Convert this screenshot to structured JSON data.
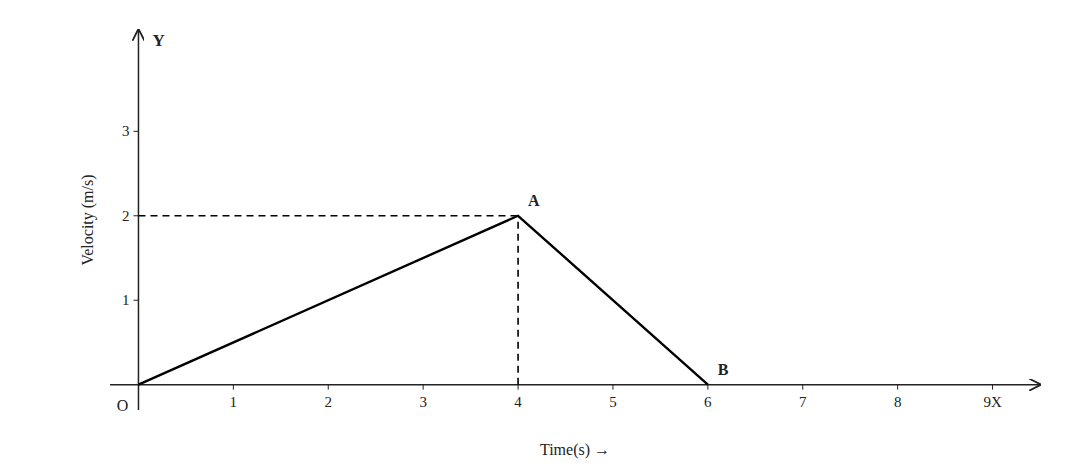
{
  "chart_data": {
    "type": "line",
    "xlabel": "Time(s) →",
    "ylabel": "Velocity (m/s)",
    "series": [
      {
        "x": [
          0,
          4,
          6
        ],
        "values": [
          0,
          2,
          0
        ],
        "color": "black",
        "line_style": "solid",
        "point_labels": [
          "O",
          "A",
          "B"
        ]
      },
      {
        "x": [
          0,
          4
        ],
        "values": [
          2,
          2
        ],
        "color": "black",
        "line_style": "dashed"
      },
      {
        "x": [
          4,
          4
        ],
        "values": [
          0,
          2
        ],
        "color": "black",
        "line_style": "dashed"
      }
    ],
    "xlim": [
      -0.3,
      9.5
    ],
    "ylim": [
      -0.3,
      4.2
    ],
    "xticks": [
      1,
      2,
      3,
      4,
      5,
      6,
      7,
      8,
      {
        "value": 9,
        "label": "9X"
      }
    ],
    "yticks": [
      1,
      2,
      3
    ],
    "annotations": [
      "Y"
    ],
    "grid": false
  }
}
